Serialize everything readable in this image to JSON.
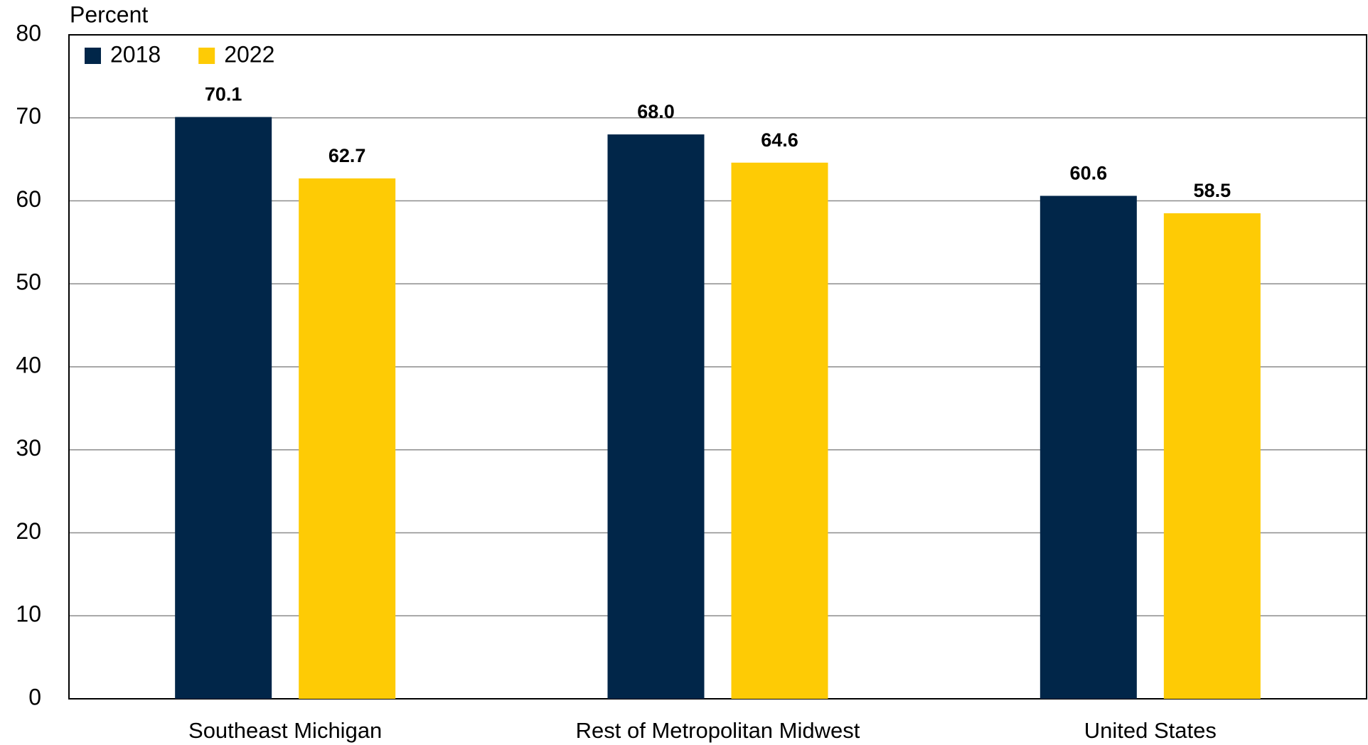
{
  "chart_data": {
    "type": "bar",
    "y_axis_label": "Percent",
    "categories": [
      "Southeast Michigan",
      "Rest of Metropolitan Midwest",
      "United States"
    ],
    "series": [
      {
        "name": "2018",
        "color": "#012649",
        "values": [
          70.1,
          68.0,
          60.6
        ],
        "value_labels": [
          "70.1",
          "68.0",
          "60.6"
        ]
      },
      {
        "name": "2022",
        "color": "#fecb05",
        "values": [
          62.7,
          64.6,
          58.5
        ],
        "value_labels": [
          "62.7",
          "64.6",
          "58.5"
        ]
      }
    ],
    "ylim": [
      0,
      80
    ],
    "yticks": [
      0,
      10,
      20,
      30,
      40,
      50,
      60,
      70,
      80
    ],
    "grid": true,
    "legend": "top-left"
  }
}
